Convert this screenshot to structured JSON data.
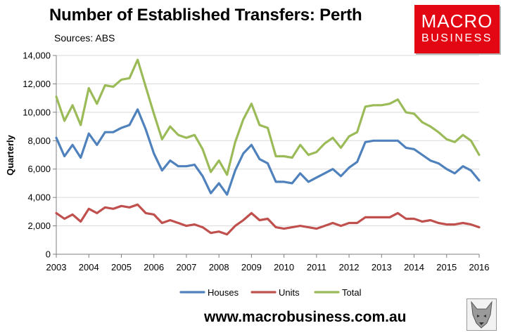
{
  "header": {
    "title": "Number of Established Transfers: Perth",
    "sources": "Sources: ABS"
  },
  "logo": {
    "line1": "MACRO",
    "line2": "BUSINESS",
    "color": "#e30613"
  },
  "footer": {
    "website": "www.macrobusiness.com.au",
    "wolf_icon": "wolf-head-icon"
  },
  "chart_data": {
    "type": "line",
    "title": "Number of Established Transfers: Perth",
    "ylabel": "Quarterly",
    "xlabel": "",
    "ylim": [
      0,
      14000
    ],
    "y_ticks": [
      0,
      2000,
      4000,
      6000,
      8000,
      10000,
      12000,
      14000
    ],
    "y_tick_labels": [
      "0",
      "2,000",
      "4,000",
      "6,000",
      "8,000",
      "10,000",
      "12,000",
      "14,000"
    ],
    "x_range": [
      2003,
      2016
    ],
    "x_ticks": [
      2003,
      2004,
      2005,
      2006,
      2007,
      2008,
      2009,
      2010,
      2011,
      2012,
      2013,
      2014,
      2015,
      2016
    ],
    "x_tick_labels": [
      "2003",
      "2004",
      "2005",
      "2006",
      "2007",
      "2008",
      "2009",
      "2010",
      "2011",
      "2012",
      "2013",
      "2014",
      "2015",
      "2016"
    ],
    "grid": "horizontal",
    "legend_position": "bottom",
    "x": [
      2003.0,
      2003.25,
      2003.5,
      2003.75,
      2004.0,
      2004.25,
      2004.5,
      2004.75,
      2005.0,
      2005.25,
      2005.5,
      2005.75,
      2006.0,
      2006.25,
      2006.5,
      2006.75,
      2007.0,
      2007.25,
      2007.5,
      2007.75,
      2008.0,
      2008.25,
      2008.5,
      2008.75,
      2009.0,
      2009.25,
      2009.5,
      2009.75,
      2010.0,
      2010.25,
      2010.5,
      2010.75,
      2011.0,
      2011.25,
      2011.5,
      2011.75,
      2012.0,
      2012.25,
      2012.5,
      2012.75,
      2013.0,
      2013.25,
      2013.5,
      2013.75,
      2014.0,
      2014.25,
      2014.5,
      2014.75,
      2015.0,
      2015.25,
      2015.5,
      2015.75,
      2016.0
    ],
    "series": [
      {
        "name": "Houses",
        "color": "#4f81bd",
        "values": [
          8200,
          6900,
          7700,
          6800,
          8500,
          7700,
          8600,
          8600,
          8900,
          9100,
          10200,
          8800,
          7100,
          5900,
          6600,
          6200,
          6200,
          6300,
          5500,
          4300,
          5000,
          4200,
          5900,
          7100,
          7700,
          6700,
          6400,
          5100,
          5100,
          5000,
          5700,
          5100,
          5400,
          5700,
          6000,
          5500,
          6100,
          6500,
          7900,
          8000,
          8000,
          8000,
          8000,
          7500,
          7400,
          7000,
          6600,
          6400,
          6000,
          5700,
          6200,
          5900,
          5200
        ]
      },
      {
        "name": "Units",
        "color": "#c0504d",
        "values": [
          2900,
          2500,
          2800,
          2300,
          3200,
          2900,
          3300,
          3200,
          3400,
          3300,
          3500,
          2900,
          2800,
          2200,
          2400,
          2200,
          2000,
          2100,
          1900,
          1500,
          1600,
          1400,
          2000,
          2400,
          2900,
          2400,
          2500,
          1900,
          1800,
          1900,
          2000,
          1900,
          1800,
          2000,
          2200,
          2000,
          2200,
          2200,
          2600,
          2600,
          2600,
          2600,
          2900,
          2500,
          2500,
          2300,
          2400,
          2200,
          2100,
          2100,
          2200,
          2100,
          1900
        ]
      },
      {
        "name": "Total",
        "color": "#9bbb59",
        "values": [
          11100,
          9400,
          10500,
          9100,
          11700,
          10600,
          11900,
          11800,
          12300,
          12400,
          13700,
          11800,
          9900,
          8100,
          9000,
          8400,
          8200,
          8400,
          7400,
          5800,
          6600,
          5600,
          7900,
          9500,
          10600,
          9100,
          8900,
          6900,
          6900,
          6800,
          7700,
          7000,
          7200,
          7800,
          8200,
          7500,
          8300,
          8600,
          10400,
          10500,
          10500,
          10600,
          10900,
          10000,
          9900,
          9300,
          9000,
          8600,
          8100,
          7900,
          8400,
          8000,
          7000
        ]
      }
    ]
  }
}
